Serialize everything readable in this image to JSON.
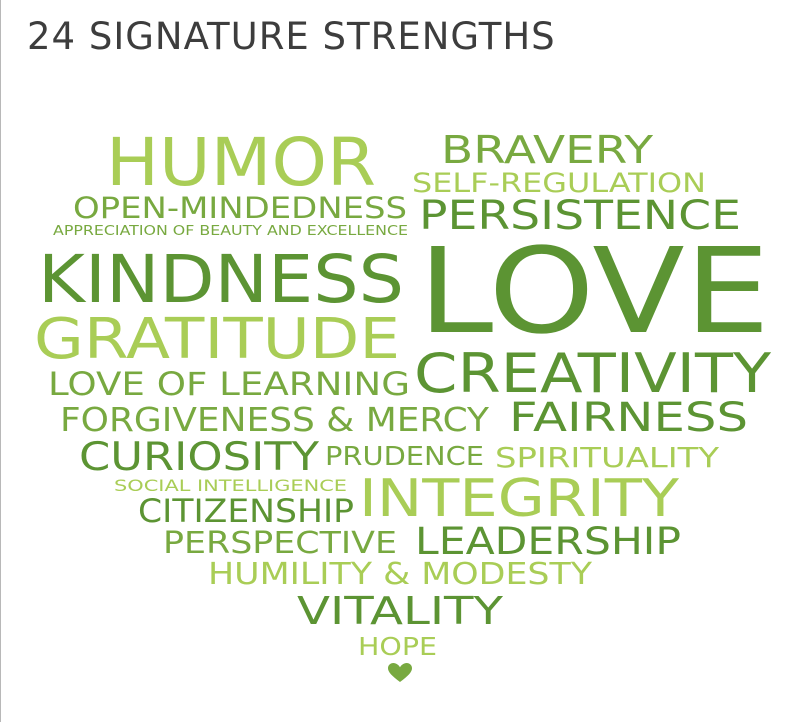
{
  "title": "24 SIGNATURE STRENGTHS",
  "colors": {
    "title": "#3d3d3d",
    "dark_green": "#5c9433",
    "light_green": "#a9cd56",
    "mid_green": "#78a940"
  },
  "words": [
    {
      "id": "humor",
      "text": "HUMOR"
    },
    {
      "id": "bravery",
      "text": "BRAVERY"
    },
    {
      "id": "self-regulation",
      "text": "SELF-REGULATION"
    },
    {
      "id": "open-mindedness",
      "text": "OPEN-MINDEDNESS"
    },
    {
      "id": "persistence",
      "text": "PERSISTENCE"
    },
    {
      "id": "appreciation",
      "text": "APPRECIATION OF BEAUTY AND EXCELLENCE"
    },
    {
      "id": "kindness",
      "text": "KINDNESS"
    },
    {
      "id": "love",
      "text": "LOVE"
    },
    {
      "id": "gratitude",
      "text": "GRATITUDE"
    },
    {
      "id": "creativity",
      "text": "CREATIVITY"
    },
    {
      "id": "love-of-learning",
      "text": "LOVE OF LEARNING"
    },
    {
      "id": "forgiveness",
      "text": "FORGIVENESS & MERCY"
    },
    {
      "id": "fairness",
      "text": "FAIRNESS"
    },
    {
      "id": "curiosity",
      "text": "CURIOSITY"
    },
    {
      "id": "prudence",
      "text": "PRUDENCE"
    },
    {
      "id": "spirituality",
      "text": "SPIRITUALITY"
    },
    {
      "id": "social-intelligence",
      "text": "SOCIAL INTELLIGENCE"
    },
    {
      "id": "integrity",
      "text": "INTEGRITY"
    },
    {
      "id": "citizenship",
      "text": "CITIZENSHIP"
    },
    {
      "id": "perspective",
      "text": "PERSPECTIVE"
    },
    {
      "id": "leadership",
      "text": "LEADERSHIP"
    },
    {
      "id": "humility",
      "text": "HUMILITY & MODESTY"
    },
    {
      "id": "vitality",
      "text": "VITALITY"
    },
    {
      "id": "hope",
      "text": "HOPE"
    }
  ],
  "icons": {
    "bottom": "heart-icon"
  }
}
